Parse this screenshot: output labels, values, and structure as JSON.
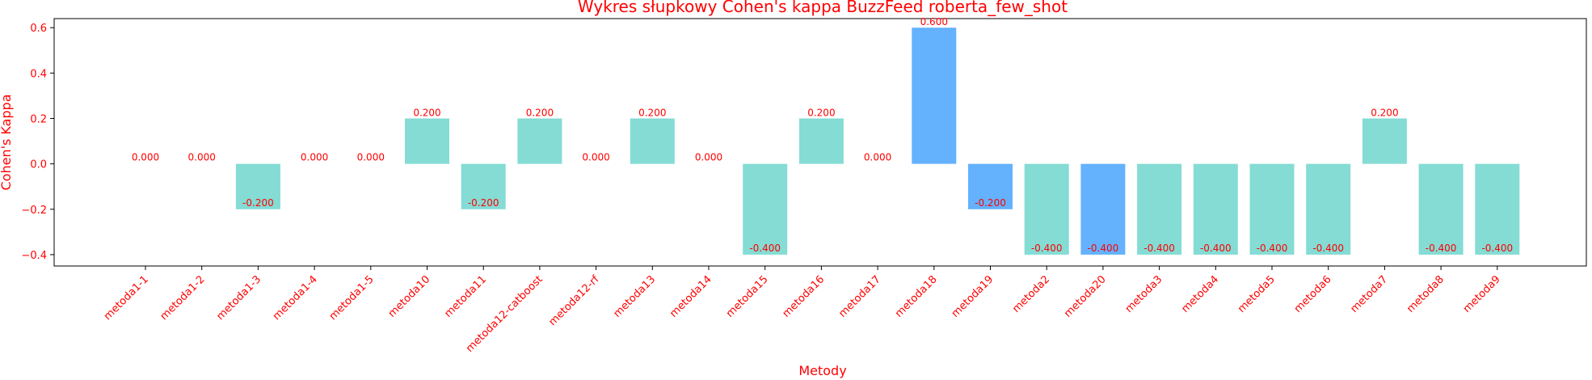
{
  "chart_data": {
    "type": "bar",
    "title": "Wykres słupkowy Cohen's kappa BuzzFeed roberta_few_shot",
    "xlabel": "Metody",
    "ylabel": "Cohen's Kappa",
    "ylim": [
      -0.45,
      0.64
    ],
    "yticks": [
      -0.4,
      -0.2,
      0.0,
      0.2,
      0.4,
      0.6
    ],
    "ytick_labels": [
      "−0.4",
      "−0.2",
      "0.0",
      "0.2",
      "0.4",
      "0.6"
    ],
    "grid": false,
    "categories": [
      "metoda1-1",
      "metoda1-2",
      "metoda1-3",
      "metoda1-4",
      "metoda1-5",
      "metoda10",
      "metoda11",
      "metoda12-catboost",
      "metoda12-rf",
      "metoda13",
      "metoda14",
      "metoda15",
      "metoda16",
      "metoda17",
      "metoda18",
      "metoda19",
      "metoda2",
      "metoda20",
      "metoda3",
      "metoda4",
      "metoda5",
      "metoda6",
      "metoda7",
      "metoda8",
      "metoda9"
    ],
    "values": [
      0.0,
      0.0,
      -0.2,
      0.0,
      0.0,
      0.2,
      -0.2,
      0.2,
      0.0,
      0.2,
      0.0,
      -0.4,
      0.2,
      0.0,
      0.6,
      -0.2,
      -0.4,
      -0.4,
      -0.4,
      -0.4,
      -0.4,
      -0.4,
      0.2,
      -0.4,
      -0.4
    ],
    "value_labels": [
      "0.000",
      "0.000",
      "-0.200",
      "0.000",
      "0.000",
      "0.200",
      "-0.200",
      "0.200",
      "0.000",
      "0.200",
      "0.000",
      "-0.400",
      "0.200",
      "0.000",
      "0.600",
      "-0.200",
      "-0.400",
      "-0.400",
      "-0.400",
      "-0.400",
      "-0.400",
      "-0.400",
      "0.200",
      "-0.400",
      "-0.400"
    ],
    "highlighted": [
      "metoda18",
      "metoda19",
      "metoda20"
    ],
    "colors": {
      "bar": "#84dcd4",
      "highlight": "#64b2fe",
      "text": "#ff0000",
      "axis": "#000000"
    }
  }
}
